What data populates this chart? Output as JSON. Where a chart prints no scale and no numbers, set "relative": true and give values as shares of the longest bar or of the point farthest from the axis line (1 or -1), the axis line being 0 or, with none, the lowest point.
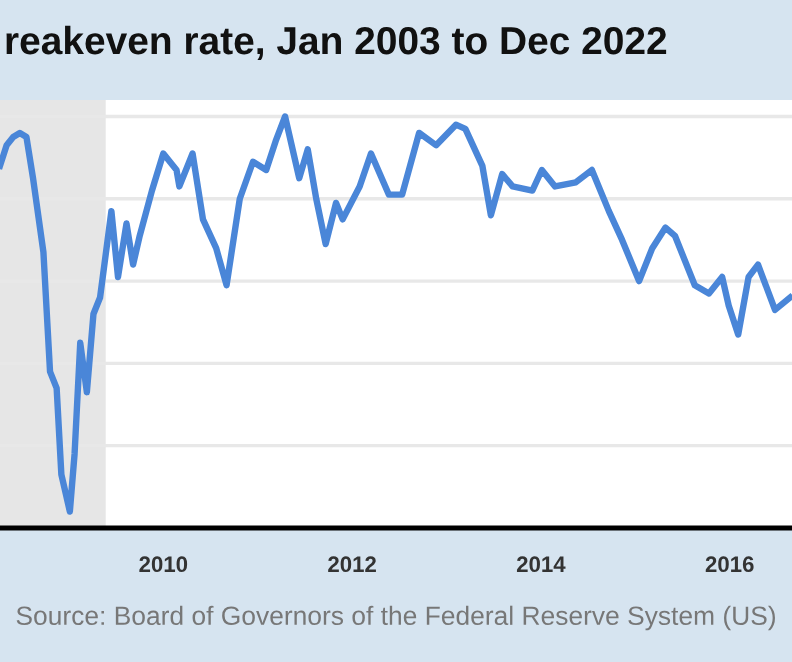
{
  "chart_data": {
    "type": "line",
    "title": "reakeven rate, Jan 2003 to Dec 2022",
    "relative": true,
    "grid": "y",
    "marker": "none",
    "line_style": "solid",
    "annotations": [
      "Source: Board of Governors of the Federal Reserve System (US)"
    ],
    "xlim": [
      2008.27,
      2016.66
    ],
    "xticks": [
      2010,
      2012,
      2014,
      2016
    ],
    "bands": [
      {
        "axis": "x",
        "from": 2008.27,
        "to": 2009.39,
        "color": "#e6e6e6"
      }
    ],
    "series": [
      {
        "color": "#4a86d8",
        "x": [
          2008.27,
          2008.34,
          2008.41,
          2008.48,
          2008.55,
          2008.62,
          2008.73,
          2008.8,
          2008.87,
          2008.92,
          2008.97,
          2009.01,
          2009.06,
          2009.12,
          2009.19,
          2009.26,
          2009.33,
          2009.45,
          2009.52,
          2009.61,
          2009.68,
          2009.75,
          2009.88,
          2010.0,
          2010.14,
          2010.17,
          2010.31,
          2010.42,
          2010.56,
          2010.67,
          2010.81,
          2010.95,
          2011.09,
          2011.19,
          2011.29,
          2011.44,
          2011.53,
          2011.62,
          2011.72,
          2011.83,
          2011.9,
          2012.08,
          2012.2,
          2012.39,
          2012.53,
          2012.71,
          2012.89,
          2013.1,
          2013.2,
          2013.38,
          2013.47,
          2013.59,
          2013.7,
          2013.91,
          2014.01,
          2014.15,
          2014.37,
          2014.54,
          2014.72,
          2014.86,
          2015.04,
          2015.18,
          2015.32,
          2015.42,
          2015.63,
          2015.78,
          2015.92,
          2015.99,
          2016.09,
          2016.2,
          2016.3,
          2016.48,
          2016.64
        ],
        "values": [
          0.88,
          0.93,
          0.95,
          0.96,
          0.95,
          0.85,
          0.67,
          0.38,
          0.34,
          0.13,
          0.08,
          0.04,
          0.18,
          0.45,
          0.33,
          0.52,
          0.56,
          0.77,
          0.61,
          0.74,
          0.64,
          0.71,
          0.82,
          0.91,
          0.87,
          0.83,
          0.91,
          0.75,
          0.68,
          0.59,
          0.8,
          0.89,
          0.87,
          0.94,
          1.0,
          0.85,
          0.92,
          0.8,
          0.69,
          0.79,
          0.75,
          0.83,
          0.91,
          0.81,
          0.81,
          0.96,
          0.93,
          0.98,
          0.97,
          0.88,
          0.76,
          0.86,
          0.83,
          0.82,
          0.87,
          0.83,
          0.84,
          0.87,
          0.77,
          0.7,
          0.6,
          0.68,
          0.73,
          0.71,
          0.59,
          0.57,
          0.61,
          0.54,
          0.47,
          0.61,
          0.64,
          0.53,
          0.56
        ]
      }
    ]
  }
}
